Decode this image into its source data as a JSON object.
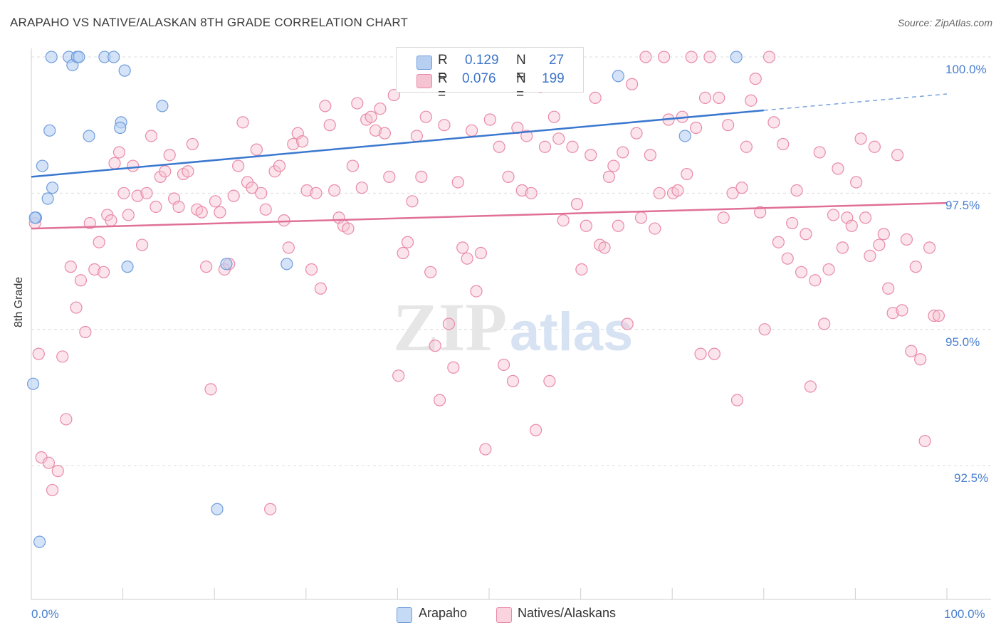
{
  "title": "ARAPAHO VS NATIVE/ALASKAN 8TH GRADE CORRELATION CHART",
  "source": "Source: ZipAtlas.com",
  "watermark": {
    "zip": "ZIP",
    "atlas": "atlas"
  },
  "legend": {
    "rows": [
      {
        "r_label": "R =",
        "r_value": "0.129",
        "n_label": "N =",
        "n_value": "27",
        "color": "#a9c6ef",
        "stroke": "#6f9ddc"
      },
      {
        "r_label": "R =",
        "r_value": "0.076",
        "n_label": "N =",
        "n_value": "199",
        "color": "#f7c1d0",
        "stroke": "#e98aa8"
      }
    ]
  },
  "bottom_legend": [
    {
      "label": "Arapaho",
      "color": "#c5daf5",
      "stroke": "#6f9ddc"
    },
    {
      "label": "Natives/Alaskans",
      "color": "#fad3df",
      "stroke": "#e98aa8"
    }
  ],
  "chart_data": {
    "type": "scatter",
    "title": "ARAPAHO VS NATIVE/ALASKAN 8TH GRADE CORRELATION CHART",
    "xlabel": "",
    "ylabel": "8th Grade",
    "xlim": [
      0,
      100
    ],
    "ylim": [
      90.2,
      100.4
    ],
    "x_tick_labels": [
      "0.0%",
      "100.0%"
    ],
    "y_ticks": [
      92.5,
      95.0,
      97.5,
      100.0
    ],
    "y_tick_labels": [
      "92.5%",
      "95.0%",
      "97.5%",
      "100.0%"
    ],
    "grid": true,
    "series": [
      {
        "name": "Arapaho",
        "color": "#6f9ddc",
        "fill": "#b7d0f2",
        "trend": {
          "x": [
            0,
            80
          ],
          "y": [
            97.8,
            99.02
          ],
          "dash_to": [
            100,
            99.32
          ]
        },
        "points": [
          [
            2.2,
            100
          ],
          [
            4.1,
            100
          ],
          [
            4.5,
            99.85
          ],
          [
            5.0,
            100
          ],
          [
            5.2,
            100
          ],
          [
            8.0,
            100
          ],
          [
            9.0,
            100
          ],
          [
            10.2,
            99.75
          ],
          [
            14.3,
            99.1
          ],
          [
            9.8,
            98.8
          ],
          [
            9.7,
            98.7
          ],
          [
            2.0,
            98.65
          ],
          [
            6.3,
            98.55
          ],
          [
            1.2,
            98.0
          ],
          [
            2.3,
            97.6
          ],
          [
            1.8,
            97.4
          ],
          [
            0.5,
            97.05
          ],
          [
            10.5,
            96.15
          ],
          [
            21.3,
            96.2
          ],
          [
            27.9,
            96.2
          ],
          [
            64.1,
            99.65
          ],
          [
            77.0,
            100
          ],
          [
            71.4,
            98.55
          ],
          [
            0.2,
            94.0
          ],
          [
            20.3,
            91.7
          ],
          [
            0.9,
            91.1
          ],
          [
            0.4,
            97.05
          ]
        ]
      },
      {
        "name": "Natives/Alaskans",
        "color": "#e98aa8",
        "fill": "#f6c3d2",
        "trend": {
          "x": [
            0,
            100
          ],
          "y": [
            96.85,
            97.32
          ]
        },
        "points": [
          [
            0.4,
            96.95
          ],
          [
            0.8,
            94.55
          ],
          [
            1.1,
            92.65
          ],
          [
            1.9,
            92.55
          ],
          [
            2.3,
            92.05
          ],
          [
            2.9,
            92.4
          ],
          [
            3.4,
            94.5
          ],
          [
            3.8,
            93.35
          ],
          [
            4.3,
            96.15
          ],
          [
            4.9,
            95.4
          ],
          [
            5.4,
            95.9
          ],
          [
            5.9,
            94.95
          ],
          [
            6.4,
            96.95
          ],
          [
            6.9,
            96.1
          ],
          [
            7.4,
            96.6
          ],
          [
            7.9,
            96.05
          ],
          [
            8.3,
            97.1
          ],
          [
            8.7,
            97.0
          ],
          [
            9.1,
            98.05
          ],
          [
            9.6,
            98.25
          ],
          [
            10.1,
            97.5
          ],
          [
            10.6,
            97.1
          ],
          [
            11.1,
            98.0
          ],
          [
            11.6,
            97.45
          ],
          [
            12.1,
            96.55
          ],
          [
            12.6,
            97.5
          ],
          [
            13.1,
            98.55
          ],
          [
            13.6,
            97.25
          ],
          [
            14.1,
            97.8
          ],
          [
            14.6,
            97.9
          ],
          [
            15.1,
            98.2
          ],
          [
            15.6,
            97.4
          ],
          [
            16.1,
            97.25
          ],
          [
            16.6,
            97.85
          ],
          [
            17.1,
            97.9
          ],
          [
            17.6,
            98.4
          ],
          [
            18.1,
            97.2
          ],
          [
            18.6,
            97.15
          ],
          [
            19.1,
            96.15
          ],
          [
            19.6,
            93.9
          ],
          [
            20.1,
            97.35
          ],
          [
            20.6,
            97.15
          ],
          [
            21.1,
            96.1
          ],
          [
            21.6,
            96.2
          ],
          [
            22.1,
            97.45
          ],
          [
            22.6,
            98.0
          ],
          [
            23.1,
            98.8
          ],
          [
            23.6,
            97.7
          ],
          [
            24.1,
            97.6
          ],
          [
            24.6,
            98.3
          ],
          [
            25.1,
            97.5
          ],
          [
            25.6,
            97.2
          ],
          [
            26.1,
            91.7
          ],
          [
            26.6,
            97.9
          ],
          [
            27.1,
            98.0
          ],
          [
            27.6,
            97.0
          ],
          [
            28.1,
            96.5
          ],
          [
            28.6,
            98.4
          ],
          [
            29.1,
            98.6
          ],
          [
            29.6,
            98.45
          ],
          [
            30.1,
            97.55
          ],
          [
            30.6,
            96.1
          ],
          [
            31.1,
            97.5
          ],
          [
            31.6,
            95.75
          ],
          [
            32.1,
            99.1
          ],
          [
            32.6,
            98.75
          ],
          [
            33.1,
            97.55
          ],
          [
            33.6,
            97.05
          ],
          [
            34.1,
            96.9
          ],
          [
            34.6,
            96.85
          ],
          [
            35.1,
            98.0
          ],
          [
            35.6,
            99.15
          ],
          [
            36.1,
            97.6
          ],
          [
            36.6,
            98.85
          ],
          [
            37.1,
            98.9
          ],
          [
            37.6,
            98.65
          ],
          [
            38.1,
            99.05
          ],
          [
            38.6,
            98.6
          ],
          [
            39.1,
            97.8
          ],
          [
            39.6,
            99.3
          ],
          [
            40.1,
            94.15
          ],
          [
            40.6,
            96.4
          ],
          [
            41.1,
            96.6
          ],
          [
            41.6,
            97.35
          ],
          [
            42.1,
            98.55
          ],
          [
            42.6,
            97.8
          ],
          [
            43.1,
            98.9
          ],
          [
            43.6,
            96.05
          ],
          [
            44.1,
            94.7
          ],
          [
            44.6,
            93.7
          ],
          [
            45.1,
            98.75
          ],
          [
            45.6,
            95.1
          ],
          [
            46.1,
            94.3
          ],
          [
            46.6,
            97.7
          ],
          [
            47.1,
            96.5
          ],
          [
            47.6,
            96.3
          ],
          [
            48.1,
            98.65
          ],
          [
            48.6,
            95.7
          ],
          [
            49.1,
            96.4
          ],
          [
            49.6,
            92.8
          ],
          [
            50.1,
            98.85
          ],
          [
            50.6,
            99.6
          ],
          [
            51.1,
            98.35
          ],
          [
            51.6,
            94.35
          ],
          [
            52.1,
            97.8
          ],
          [
            52.6,
            94.05
          ],
          [
            53.1,
            98.7
          ],
          [
            53.6,
            97.55
          ],
          [
            54.1,
            98.55
          ],
          [
            54.6,
            97.5
          ],
          [
            55.1,
            93.15
          ],
          [
            55.6,
            99.45
          ],
          [
            56.1,
            98.35
          ],
          [
            56.6,
            94.05
          ],
          [
            57.1,
            98.9
          ],
          [
            57.6,
            98.5
          ],
          [
            58.1,
            97.0
          ],
          [
            58.6,
            99.95
          ],
          [
            59.1,
            98.35
          ],
          [
            59.6,
            97.3
          ],
          [
            60.1,
            96.1
          ],
          [
            60.6,
            96.9
          ],
          [
            61.1,
            98.2
          ],
          [
            61.6,
            99.25
          ],
          [
            62.1,
            96.55
          ],
          [
            62.6,
            96.5
          ],
          [
            63.1,
            97.8
          ],
          [
            63.6,
            98.0
          ],
          [
            64.1,
            96.9
          ],
          [
            64.6,
            98.25
          ],
          [
            65.1,
            95.1
          ],
          [
            65.6,
            99.5
          ],
          [
            66.1,
            98.6
          ],
          [
            66.6,
            97.05
          ],
          [
            67.1,
            100
          ],
          [
            67.6,
            98.2
          ],
          [
            68.1,
            96.85
          ],
          [
            68.6,
            97.5
          ],
          [
            69.1,
            100
          ],
          [
            69.6,
            98.85
          ],
          [
            70.1,
            97.5
          ],
          [
            70.6,
            97.55
          ],
          [
            71.1,
            98.9
          ],
          [
            71.6,
            97.85
          ],
          [
            72.1,
            100
          ],
          [
            72.6,
            98.7
          ],
          [
            73.1,
            94.55
          ],
          [
            73.6,
            99.25
          ],
          [
            74.1,
            100
          ],
          [
            74.6,
            94.55
          ],
          [
            75.1,
            99.25
          ],
          [
            75.6,
            97.05
          ],
          [
            76.1,
            98.75
          ],
          [
            76.6,
            97.5
          ],
          [
            77.1,
            93.7
          ],
          [
            77.6,
            97.6
          ],
          [
            78.1,
            98.35
          ],
          [
            78.6,
            99.2
          ],
          [
            79.1,
            99.6
          ],
          [
            79.6,
            97.15
          ],
          [
            80.1,
            95.0
          ],
          [
            80.6,
            100
          ],
          [
            81.1,
            98.8
          ],
          [
            81.6,
            96.6
          ],
          [
            82.1,
            98.4
          ],
          [
            82.6,
            96.3
          ],
          [
            83.1,
            96.95
          ],
          [
            83.6,
            97.55
          ],
          [
            84.1,
            96.05
          ],
          [
            84.6,
            96.75
          ],
          [
            85.1,
            93.95
          ],
          [
            85.6,
            95.9
          ],
          [
            86.1,
            98.25
          ],
          [
            86.6,
            95.1
          ],
          [
            87.1,
            96.1
          ],
          [
            87.6,
            97.1
          ],
          [
            88.1,
            97.95
          ],
          [
            88.6,
            96.5
          ],
          [
            89.1,
            97.05
          ],
          [
            89.6,
            96.9
          ],
          [
            90.1,
            97.7
          ],
          [
            90.6,
            98.5
          ],
          [
            91.1,
            97.05
          ],
          [
            91.6,
            96.35
          ],
          [
            92.1,
            98.35
          ],
          [
            92.6,
            96.55
          ],
          [
            93.1,
            96.75
          ],
          [
            93.6,
            95.75
          ],
          [
            94.1,
            95.3
          ],
          [
            94.6,
            98.2
          ],
          [
            95.1,
            95.35
          ],
          [
            95.6,
            96.65
          ],
          [
            96.1,
            94.6
          ],
          [
            96.6,
            96.15
          ],
          [
            97.1,
            94.45
          ],
          [
            97.6,
            92.95
          ],
          [
            98.1,
            96.5
          ],
          [
            98.6,
            95.25
          ],
          [
            99.1,
            95.25
          ]
        ]
      }
    ]
  }
}
